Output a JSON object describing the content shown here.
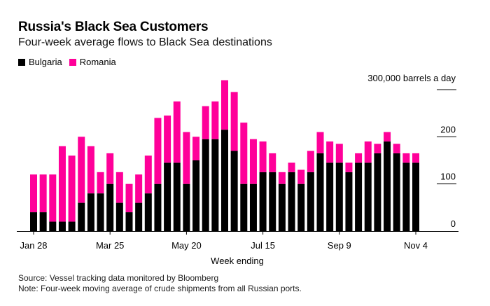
{
  "header": {
    "title": "Russia's Black Sea Customers",
    "subtitle": "Four-week average flows to Black Sea destinations"
  },
  "legend": [
    {
      "label": "Bulgaria",
      "color": "#000000"
    },
    {
      "label": "Romania",
      "color": "#ff0099"
    }
  ],
  "footer": {
    "source": "Source: Vessel tracking data monitored by Bloomberg",
    "note": "Note: Four-week moving average of crude shipments from all Russian ports."
  },
  "chart_data": {
    "type": "bar",
    "stacked": true,
    "title": "Russia's Black Sea Customers",
    "subtitle": "Four-week average flows to Black Sea destinations",
    "xlabel": "Week ending",
    "ylabel": "300,000 barrels a day",
    "y_unit_label": "300,000 barrels a day",
    "ylim": [
      0,
      300
    ],
    "yticks": [
      0,
      100,
      200,
      300
    ],
    "ytick_labels": [
      "0",
      "100",
      "200",
      ""
    ],
    "y_axis_side": "right",
    "x_tick_labels": [
      {
        "index": 0,
        "label": "Jan 28"
      },
      {
        "index": 8,
        "label": "Mar 25"
      },
      {
        "index": 16,
        "label": "May 20"
      },
      {
        "index": 24,
        "label": "Jul 15"
      },
      {
        "index": 32,
        "label": "Sep 9"
      },
      {
        "index": 40,
        "label": "Nov 4"
      }
    ],
    "legend_position": "top-left",
    "grid": false,
    "series": [
      {
        "name": "Bulgaria",
        "color": "#000000",
        "values": [
          40,
          40,
          20,
          20,
          20,
          60,
          80,
          80,
          100,
          60,
          40,
          60,
          80,
          100,
          145,
          145,
          100,
          150,
          195,
          195,
          215,
          170,
          100,
          100,
          125,
          125,
          100,
          125,
          100,
          125,
          165,
          145,
          145,
          125,
          145,
          145,
          165,
          190,
          165,
          145,
          145
        ]
      },
      {
        "name": "Romania",
        "color": "#ff0099",
        "values": [
          80,
          80,
          100,
          160,
          140,
          140,
          100,
          45,
          65,
          65,
          60,
          60,
          80,
          140,
          100,
          130,
          110,
          50,
          70,
          80,
          105,
          125,
          130,
          95,
          65,
          40,
          25,
          20,
          30,
          45,
          45,
          45,
          40,
          20,
          20,
          45,
          20,
          20,
          20,
          20,
          20
        ]
      }
    ]
  }
}
